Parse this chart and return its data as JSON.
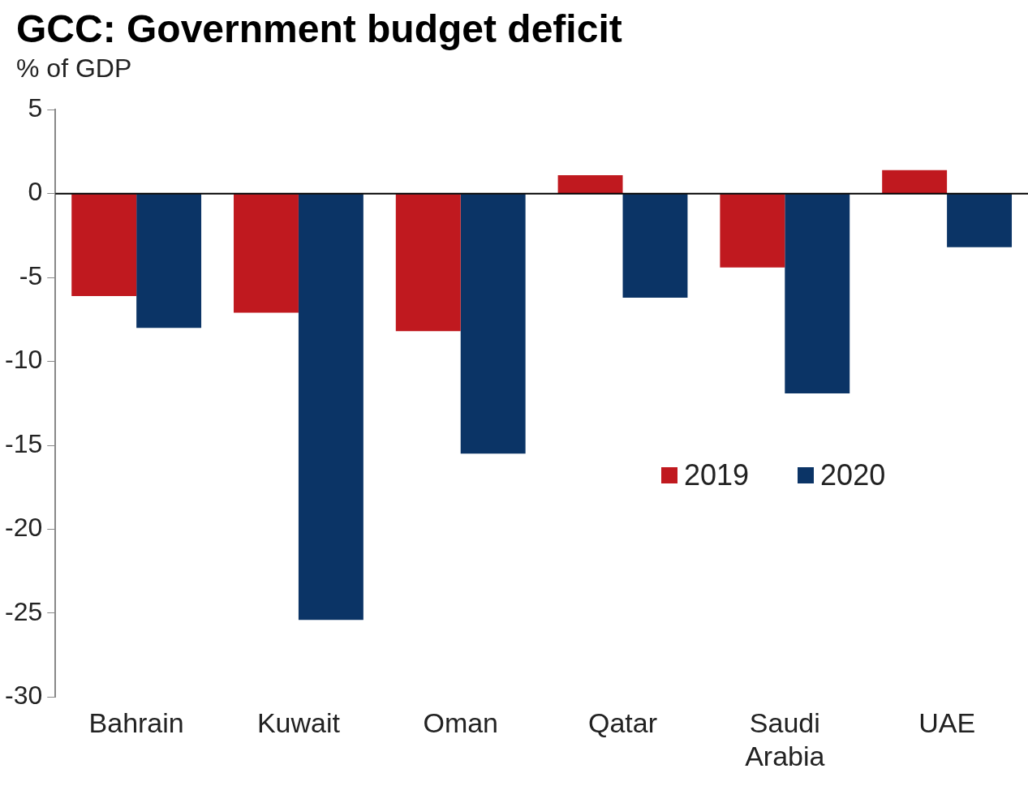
{
  "chart_data": {
    "type": "bar",
    "title": "GCC: Government budget deficit",
    "ylabel": "% of GDP",
    "categories": [
      "Bahrain",
      "Kuwait",
      "Oman",
      "Qatar",
      "Saudi Arabia",
      "UAE"
    ],
    "series": [
      {
        "name": "2019",
        "color": "#c0191f",
        "values": [
          -6.1,
          -7.1,
          -8.2,
          1.1,
          -4.4,
          1.4
        ]
      },
      {
        "name": "2020",
        "color": "#0b3466",
        "values": [
          -8.0,
          -25.4,
          -15.5,
          -6.2,
          -11.9,
          -3.2
        ]
      }
    ],
    "ylim": [
      -30,
      5
    ],
    "yticks": [
      5,
      0,
      -5,
      -10,
      -15,
      -20,
      -25,
      -30
    ],
    "ref_lines": [
      {
        "axis": "y",
        "value": 0,
        "color": "#000000"
      }
    ],
    "legend": "right"
  }
}
